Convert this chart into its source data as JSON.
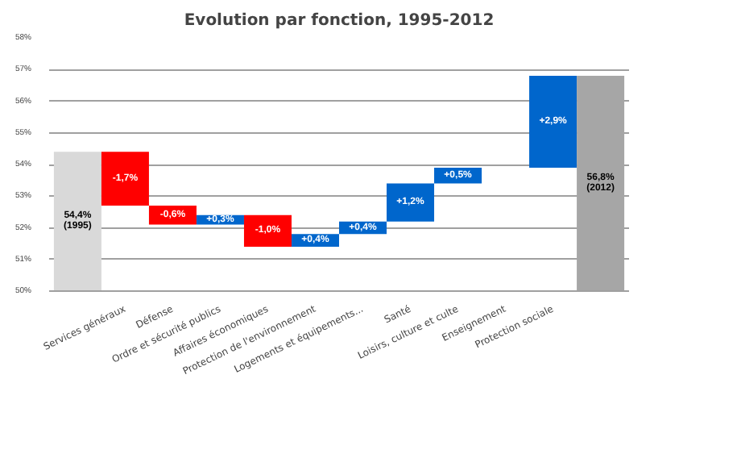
{
  "chart_data": {
    "type": "bar",
    "title": "Evolution par fonction, 1995-2012",
    "categories": [
      null,
      "Services généraux",
      "Défense",
      "Ordre et sécurité publics",
      "Affaires économiques",
      "Protection de l'environnement",
      "Logements et équipements...",
      "Santé",
      "Loisirs, culture et culte",
      "Enseignement",
      "Protection sociale",
      null
    ],
    "values": [
      54.4,
      -1.7,
      -0.6,
      0.3,
      -1.0,
      0.4,
      0.4,
      1.2,
      0.5,
      null,
      2.9,
      56.8
    ],
    "base": [
      null,
      54.4,
      52.7,
      52.1,
      52.4,
      51.4,
      51.8,
      52.2,
      53.4,
      null,
      53.9,
      null
    ],
    "colors": [
      "#d9d9d9",
      "#ff0000",
      "#ff0000",
      "#0066cc",
      "#ff0000",
      "#0066cc",
      "#0066cc",
      "#0066cc",
      "#0066cc",
      "#0066cc",
      "#0066cc",
      "#a6a6a6"
    ],
    "value_labels": [
      "54,4%\n(1995)",
      "-1,7%",
      "-0,6%",
      "+0,3%",
      "-1,0%",
      "+0,4%",
      "+0,4%",
      "+1,2%",
      "+0,5%",
      null,
      "+2,9%",
      "56,8%\n(2012)"
    ],
    "ylim": [
      50,
      58
    ],
    "yticks": [
      {
        "value": 50,
        "label": "50%"
      },
      {
        "value": 51,
        "label": "51%"
      },
      {
        "value": 52,
        "label": "52%"
      },
      {
        "value": 53,
        "label": "53%"
      },
      {
        "value": 54,
        "label": "54%"
      },
      {
        "value": 55,
        "label": "55%"
      },
      {
        "value": 56,
        "label": "56%"
      },
      {
        "value": 57,
        "label": "57%"
      },
      {
        "value": 58,
        "label": "58%"
      }
    ],
    "grid": "y"
  }
}
